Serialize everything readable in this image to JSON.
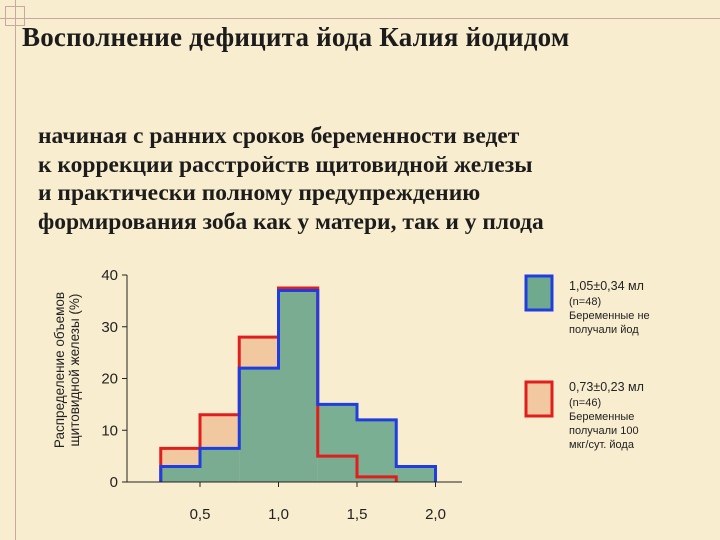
{
  "title": "Восполнение дефицита йода Калия йодидом",
  "body_lines": [
    "начиная с ранних сроков беременности ведет",
    "к коррекции расстройств щитовидной железы",
    "и практически полному предупреждению",
    "формирования зоба как у матери, так и у плода"
  ],
  "chart_data": {
    "type": "histogram",
    "ylabel_line1": "Распределение объемов",
    "ylabel_line2": "щитовидной железы (%)",
    "ylim": [
      0,
      40
    ],
    "y_ticks": [
      "0",
      "10",
      "20",
      "30",
      "40"
    ],
    "x_ticks": [
      {
        "label": "0,5",
        "value": 0.5
      },
      {
        "label": "1,0",
        "value": 1.0
      },
      {
        "label": "1,5",
        "value": 1.5
      },
      {
        "label": "2,0",
        "value": 2.0
      }
    ],
    "grid": false,
    "series": [
      {
        "legend_main": "1,05±0,34 мл",
        "legend_lines": [
          "(n=48)",
          "Беременные не",
          "получали йод"
        ],
        "stroke": "#1f3de0",
        "fill": "#6fa98e",
        "bins": [
          {
            "x0": 0.25,
            "x1": 0.5,
            "value": 3
          },
          {
            "x0": 0.5,
            "x1": 0.75,
            "value": 6.5
          },
          {
            "x0": 0.75,
            "x1": 1.0,
            "value": 22
          },
          {
            "x0": 1.0,
            "x1": 1.25,
            "value": 37
          },
          {
            "x0": 1.25,
            "x1": 1.5,
            "value": 15
          },
          {
            "x0": 1.5,
            "x1": 1.75,
            "value": 12
          },
          {
            "x0": 1.75,
            "x1": 2.0,
            "value": 3
          }
        ]
      },
      {
        "legend_main": "0,73±0,23 мл",
        "legend_lines": [
          "(n=46)",
          "Беременные",
          "получали 100",
          "мкг/сут. йода"
        ],
        "stroke": "#e01e1e",
        "fill": "#f2c8a0",
        "bins": [
          {
            "x0": 0.25,
            "x1": 0.5,
            "value": 6.5
          },
          {
            "x0": 0.5,
            "x1": 0.75,
            "value": 13
          },
          {
            "x0": 0.75,
            "x1": 1.0,
            "value": 28
          },
          {
            "x0": 1.0,
            "x1": 1.25,
            "value": 37.5
          },
          {
            "x0": 1.25,
            "x1": 1.5,
            "value": 5
          },
          {
            "x0": 1.5,
            "x1": 1.75,
            "value": 1
          }
        ]
      }
    ]
  }
}
